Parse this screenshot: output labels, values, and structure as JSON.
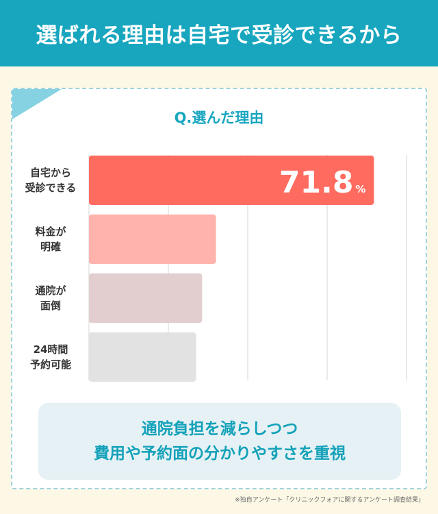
{
  "header": {
    "title": "選ばれる理由は自宅で受診できるから"
  },
  "question": "Q.選んだ理由",
  "chart_data": {
    "type": "bar",
    "orientation": "horizontal",
    "categories": [
      [
        "自宅から",
        "受診できる"
      ],
      [
        "料金が",
        "明確"
      ],
      [
        "通院が",
        "面倒"
      ],
      [
        "24時間",
        "予約可能"
      ]
    ],
    "values": [
      71.8,
      32.0,
      28.5,
      27.0
    ],
    "data_labels": [
      {
        "value": "71.8",
        "unit": "%"
      },
      null,
      null,
      null
    ],
    "xlim": [
      0,
      80
    ],
    "grid": true,
    "colors": [
      "#ff6b5f",
      "#ffb3ac",
      "#e2cdcf",
      "#e2e2e2"
    ]
  },
  "message": {
    "lines": [
      "通院負担を減らしつつ",
      "費用や予約面の分かりやすさを重視"
    ]
  },
  "footnote": "※独自アンケート「クリニックフォアに関するアンケート調査結果」"
}
